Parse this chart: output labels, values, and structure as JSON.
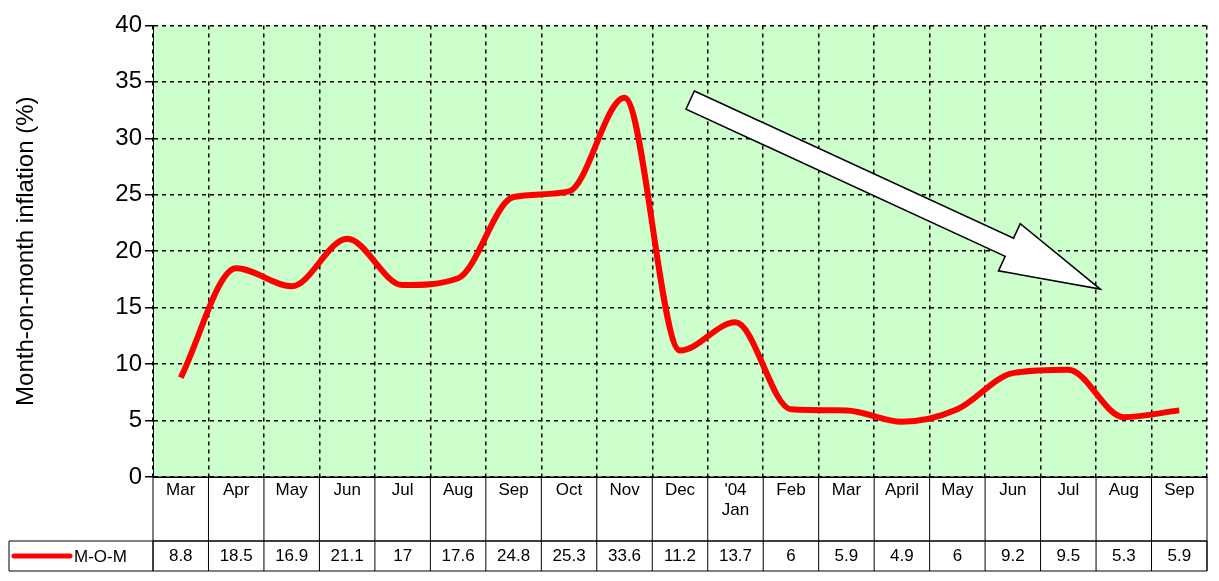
{
  "chart_data": {
    "type": "line",
    "ylabel": "Month-on-month inflation (%)",
    "categories": [
      "Mar",
      "Apr",
      "May",
      "Jun",
      "Jul",
      "Aug",
      "Sep",
      "Oct",
      "Nov",
      "Dec",
      "'04 Jan",
      "Feb",
      "Mar",
      "April",
      "May",
      "Jun",
      "Jul",
      "Aug",
      "Sep"
    ],
    "series": [
      {
        "name": "M-O-M",
        "color": "#ff0000",
        "values": [
          8.8,
          18.5,
          16.9,
          21.1,
          17,
          17.6,
          24.8,
          25.3,
          33.6,
          11.2,
          13.7,
          6,
          5.9,
          4.9,
          6,
          9.2,
          9.5,
          5.3,
          5.9
        ]
      }
    ],
    "ylim": [
      0,
      40
    ],
    "yticks": [
      0,
      5,
      10,
      15,
      20,
      25,
      30,
      35,
      40
    ],
    "grid": true,
    "legend": "bottom left",
    "data_labels": true,
    "marker": "none",
    "line_style": "solid"
  }
}
